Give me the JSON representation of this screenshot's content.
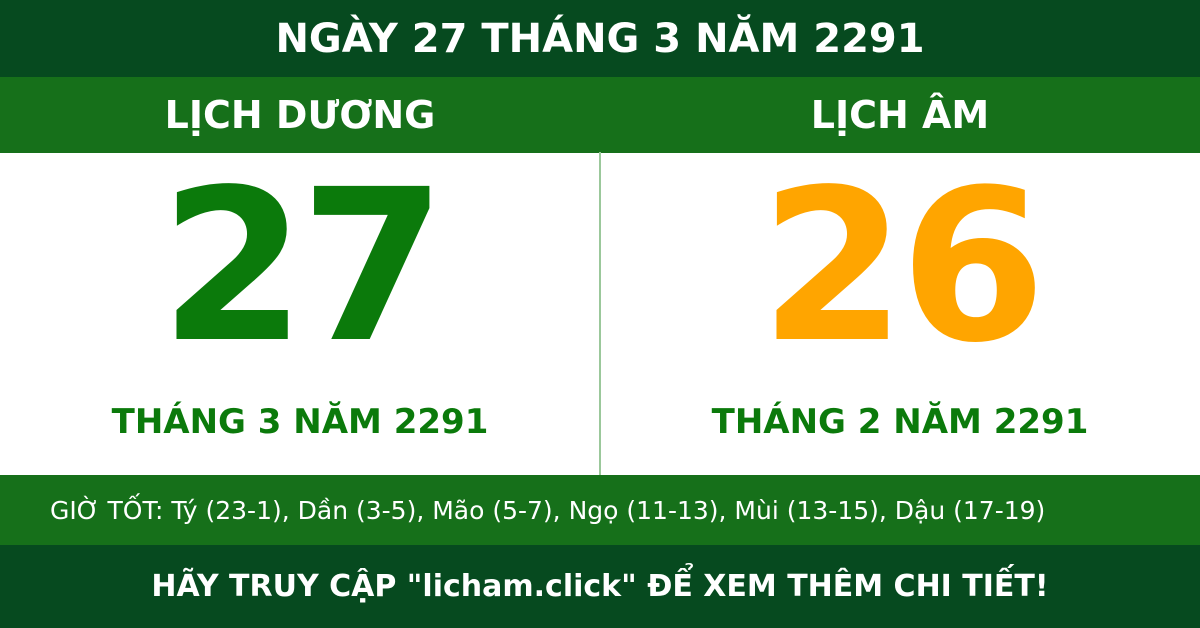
{
  "header": {
    "title": "NGÀY 27 THÁNG 3 NĂM 2291"
  },
  "solar": {
    "label": "LỊCH DƯƠNG",
    "day": "27",
    "month_year": "THÁNG 3 NĂM 2291"
  },
  "lunar": {
    "label": "LỊCH ÂM",
    "day": "26",
    "month_year": "THÁNG 2 NĂM 2291"
  },
  "good_hours": "GIỜ TỐT: Tý (23-1), Dần (3-5), Mão (5-7), Ngọ (11-13), Mùi (13-15), Dậu (17-19)",
  "footer": "HÃY TRUY CẬP \"licham.click\" ĐỂ XEM THÊM CHI TIẾT!"
}
